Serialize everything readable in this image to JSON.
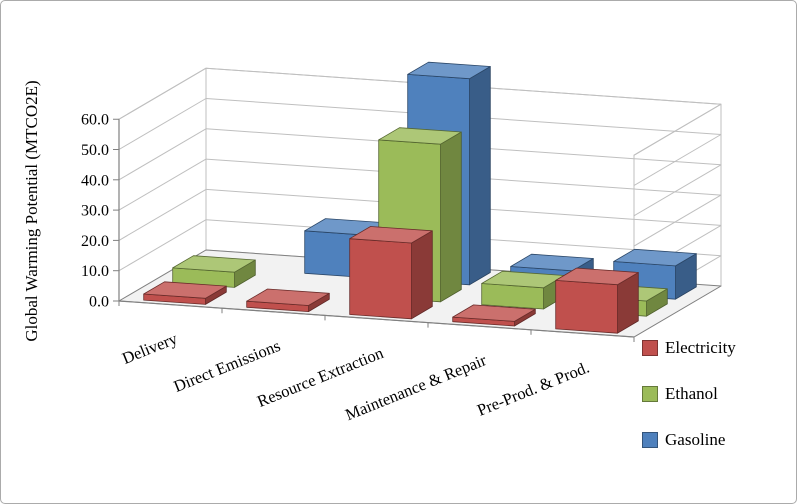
{
  "chart_data": {
    "type": "bar",
    "variant": "3d-clustered-column",
    "title": "",
    "xlabel": "",
    "ylabel": "Global Warming Potential (MTCO2E)",
    "categories": [
      "Delivery",
      "Direct Emissions",
      "Resource Extraction",
      "Maintenance & Repair",
      "Pre-Prod. & Prod."
    ],
    "series": [
      {
        "name": "Electricity",
        "color": "#C0504D",
        "values": [
          2.0,
          2.0,
          25.0,
          1.5,
          16.0
        ]
      },
      {
        "name": "Ethanol",
        "color": "#9BBB59",
        "values": [
          5.0,
          0.0,
          52.0,
          7.0,
          5.0
        ]
      },
      {
        "name": "Gasoline",
        "color": "#4F81BD",
        "values": [
          0.0,
          14.0,
          68.0,
          7.0,
          11.0
        ]
      }
    ],
    "y_ticks": [
      0,
      10,
      20,
      30,
      40,
      50,
      60
    ],
    "y_tick_labels": [
      "0.0",
      "10.0",
      "20.0",
      "30.0",
      "40.0",
      "50.0",
      "60.0"
    ],
    "ylim": [
      0,
      60
    ],
    "grid": true,
    "legend_position": "right"
  }
}
